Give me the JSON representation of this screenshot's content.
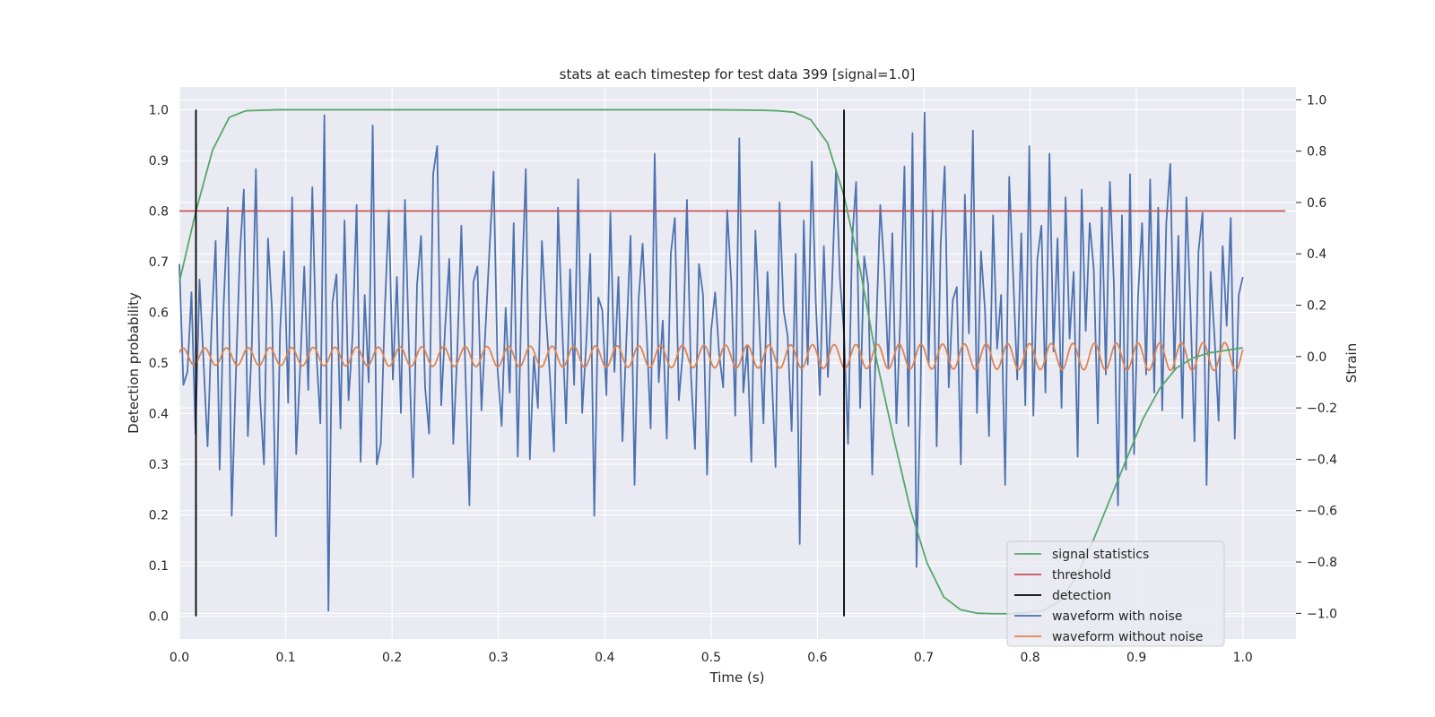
{
  "chart_data": {
    "type": "line",
    "title": "stats at each timestep for test data 399 [signal=1.0]",
    "xlabel": "Time (s)",
    "ylabel": "Detection probability",
    "y2label": "Strain",
    "xlim": [
      0.0,
      1.05
    ],
    "ylim": [
      -0.045,
      1.045
    ],
    "y2lim": [
      -1.1,
      1.05
    ],
    "xticks": [
      0.0,
      0.1,
      0.2,
      0.3,
      0.4,
      0.5,
      0.6,
      0.7,
      0.8,
      0.9,
      1.0
    ],
    "yticks": [
      0.0,
      0.1,
      0.2,
      0.3,
      0.4,
      0.5,
      0.6,
      0.7,
      0.8,
      0.9,
      1.0
    ],
    "y2ticks": [
      1.0,
      0.8,
      0.6,
      0.4,
      0.2,
      0.0,
      -0.2,
      -0.4,
      -0.6,
      -0.8,
      -1.0
    ],
    "xtick_labels": [
      "0.0",
      "0.1",
      "0.2",
      "0.3",
      "0.4",
      "0.5",
      "0.6",
      "0.7",
      "0.8",
      "0.9",
      "1.0"
    ],
    "ytick_labels": [
      "0.0",
      "0.1",
      "0.2",
      "0.3",
      "0.4",
      "0.5",
      "0.6",
      "0.7",
      "0.8",
      "0.9",
      "1.0"
    ],
    "y2tick_labels": [
      "1.0",
      "0.8",
      "0.6",
      "0.4",
      "0.2",
      "0.0",
      "−0.2",
      "−0.4",
      "−0.6",
      "−0.8",
      "−1.0"
    ],
    "grid": true,
    "legend_position": "lower-right",
    "series": [
      {
        "name": "signal statistics",
        "color": "#55a868",
        "axis": "left",
        "x": [
          0.0,
          0.0156,
          0.0312,
          0.0469,
          0.0625,
          0.0781,
          0.0938,
          0.2,
          0.3,
          0.4,
          0.5,
          0.5469,
          0.5625,
          0.5781,
          0.5938,
          0.6094,
          0.625,
          0.6406,
          0.6562,
          0.6719,
          0.6875,
          0.7031,
          0.7188,
          0.7344,
          0.75,
          0.7656,
          0.7812,
          0.7969,
          0.8125,
          0.8281,
          0.8438,
          0.8594,
          0.875,
          0.8906,
          0.9062,
          0.9219,
          0.9375,
          0.9531,
          0.9688,
          0.9844,
          1.0
        ],
        "y": [
          0.66,
          0.8,
          0.92,
          0.985,
          0.998,
          0.999,
          1.0,
          1.0,
          1.0,
          1.0,
          1.0,
          0.999,
          0.998,
          0.995,
          0.98,
          0.935,
          0.83,
          0.68,
          0.5,
          0.35,
          0.21,
          0.105,
          0.038,
          0.013,
          0.006,
          0.005,
          0.005,
          0.007,
          0.012,
          0.03,
          0.08,
          0.15,
          0.23,
          0.31,
          0.39,
          0.45,
          0.49,
          0.51,
          0.52,
          0.525,
          0.53
        ]
      },
      {
        "name": "threshold",
        "color": "#c44e52",
        "axis": "left",
        "x": [
          0.0,
          1.04
        ],
        "y": [
          0.8,
          0.8
        ]
      },
      {
        "name": "detection",
        "color": "#000000",
        "axis": "left",
        "segments": [
          {
            "x": 0.0156,
            "y": [
              0.0,
              1.0
            ]
          },
          {
            "x": 0.625,
            "y": [
              0.0,
              1.0
            ]
          }
        ]
      },
      {
        "name": "waveform with noise",
        "color": "#4c72b0",
        "axis": "right",
        "x_range": [
          0.0,
          1.0
        ],
        "y": [
          0.36,
          -0.11,
          -0.06,
          0.25,
          -0.3,
          0.3,
          -0.02,
          -0.35,
          0.12,
          0.45,
          -0.44,
          0.2,
          0.58,
          -0.62,
          -0.08,
          0.39,
          0.65,
          -0.31,
          0.05,
          0.73,
          -0.15,
          -0.42,
          0.46,
          0.18,
          -0.7,
          0.1,
          0.41,
          -0.18,
          0.62,
          -0.38,
          -0.04,
          0.35,
          -0.13,
          0.66,
          0.02,
          -0.26,
          0.94,
          -0.99,
          0.21,
          0.32,
          -0.28,
          0.53,
          -0.17,
          0.08,
          0.59,
          -0.41,
          0.24,
          -0.1,
          0.9,
          -0.42,
          -0.34,
          0.18,
          0.57,
          -0.09,
          0.31,
          -0.22,
          0.61,
          0.03,
          -0.47,
          0.28,
          0.47,
          -0.12,
          -0.3,
          0.71,
          0.82,
          -0.19,
          0.12,
          0.38,
          -0.34,
          0.02,
          0.51,
          -0.06,
          -0.58,
          0.29,
          0.35,
          -0.21,
          0.11,
          0.42,
          0.72,
          -0.05,
          -0.27,
          0.19,
          -0.14,
          0.52,
          -0.39,
          0.26,
          0.73,
          -0.4,
          0.0,
          -0.2,
          0.45,
          0.16,
          -0.08,
          -0.37,
          0.58,
          0.13,
          -0.26,
          0.34,
          -0.11,
          0.69,
          -0.22,
          0.05,
          0.4,
          -0.62,
          0.23,
          0.18,
          -0.15,
          0.56,
          -0.06,
          0.31,
          -0.33,
          0.08,
          0.47,
          -0.5,
          0.22,
          0.44,
          0.09,
          -0.28,
          0.79,
          -0.1,
          0.14,
          -0.32,
          0.4,
          0.54,
          -0.17,
          0.02,
          0.61,
          -0.07,
          -0.36,
          0.36,
          0.24,
          -0.46,
          0.1,
          0.25,
          0.01,
          -0.12,
          0.57,
          0.29,
          -0.23,
          0.85,
          -0.14,
          0.04,
          -0.41,
          0.49,
          0.12,
          -0.26,
          0.33,
          -0.05,
          -0.43,
          0.6,
          0.18,
          0.08,
          -0.29,
          0.4,
          -0.73,
          0.53,
          -0.03,
          0.76,
          0.21,
          -0.15,
          0.43,
          -0.08,
          0.27,
          0.73,
          0.3,
          0.09,
          -0.34,
          0.45,
          0.68,
          -0.2,
          0.39,
          0.28,
          -0.46,
          0.11,
          0.59,
          0.34,
          -0.04,
          0.48,
          -0.26,
          0.16,
          0.74,
          -0.27,
          0.87,
          -0.82,
          -0.14,
          0.95,
          -0.03,
          0.57,
          -0.35,
          0.44,
          0.74,
          -0.12,
          0.22,
          0.27,
          -0.42,
          0.63,
          0.09,
          0.88,
          -0.22,
          0.41,
          0.18,
          -0.31,
          0.55,
          0.03,
          0.24,
          -0.5,
          0.7,
          0.31,
          -0.09,
          0.48,
          -0.19,
          0.82,
          -0.23,
          0.38,
          0.51,
          -0.14,
          0.79,
          0.02,
          0.46,
          -0.2,
          0.62,
          0.07,
          0.33,
          -0.39,
          0.65,
          0.1,
          0.52,
          0.34,
          -0.26,
          0.58,
          -0.07,
          0.68,
          0.28,
          -0.58,
          0.55,
          -0.44,
          0.71,
          -0.38,
          0.24,
          0.52,
          -0.07,
          0.69,
          -0.14,
          0.58,
          -0.21,
          0.52,
          0.75,
          -0.05,
          0.47,
          -0.24,
          0.62,
          0.19,
          -0.33,
          0.41,
          0.56,
          -0.5,
          0.33,
          0.07,
          -0.25,
          0.43,
          0.12,
          0.54,
          -0.32,
          0.24,
          0.31
        ]
      },
      {
        "name": "waveform without noise",
        "color": "#dd8452",
        "axis": "right",
        "x_range": [
          0.0,
          1.0
        ],
        "amplitude_start": 0.033,
        "amplitude_end": 0.055,
        "cycles": 49
      }
    ]
  }
}
